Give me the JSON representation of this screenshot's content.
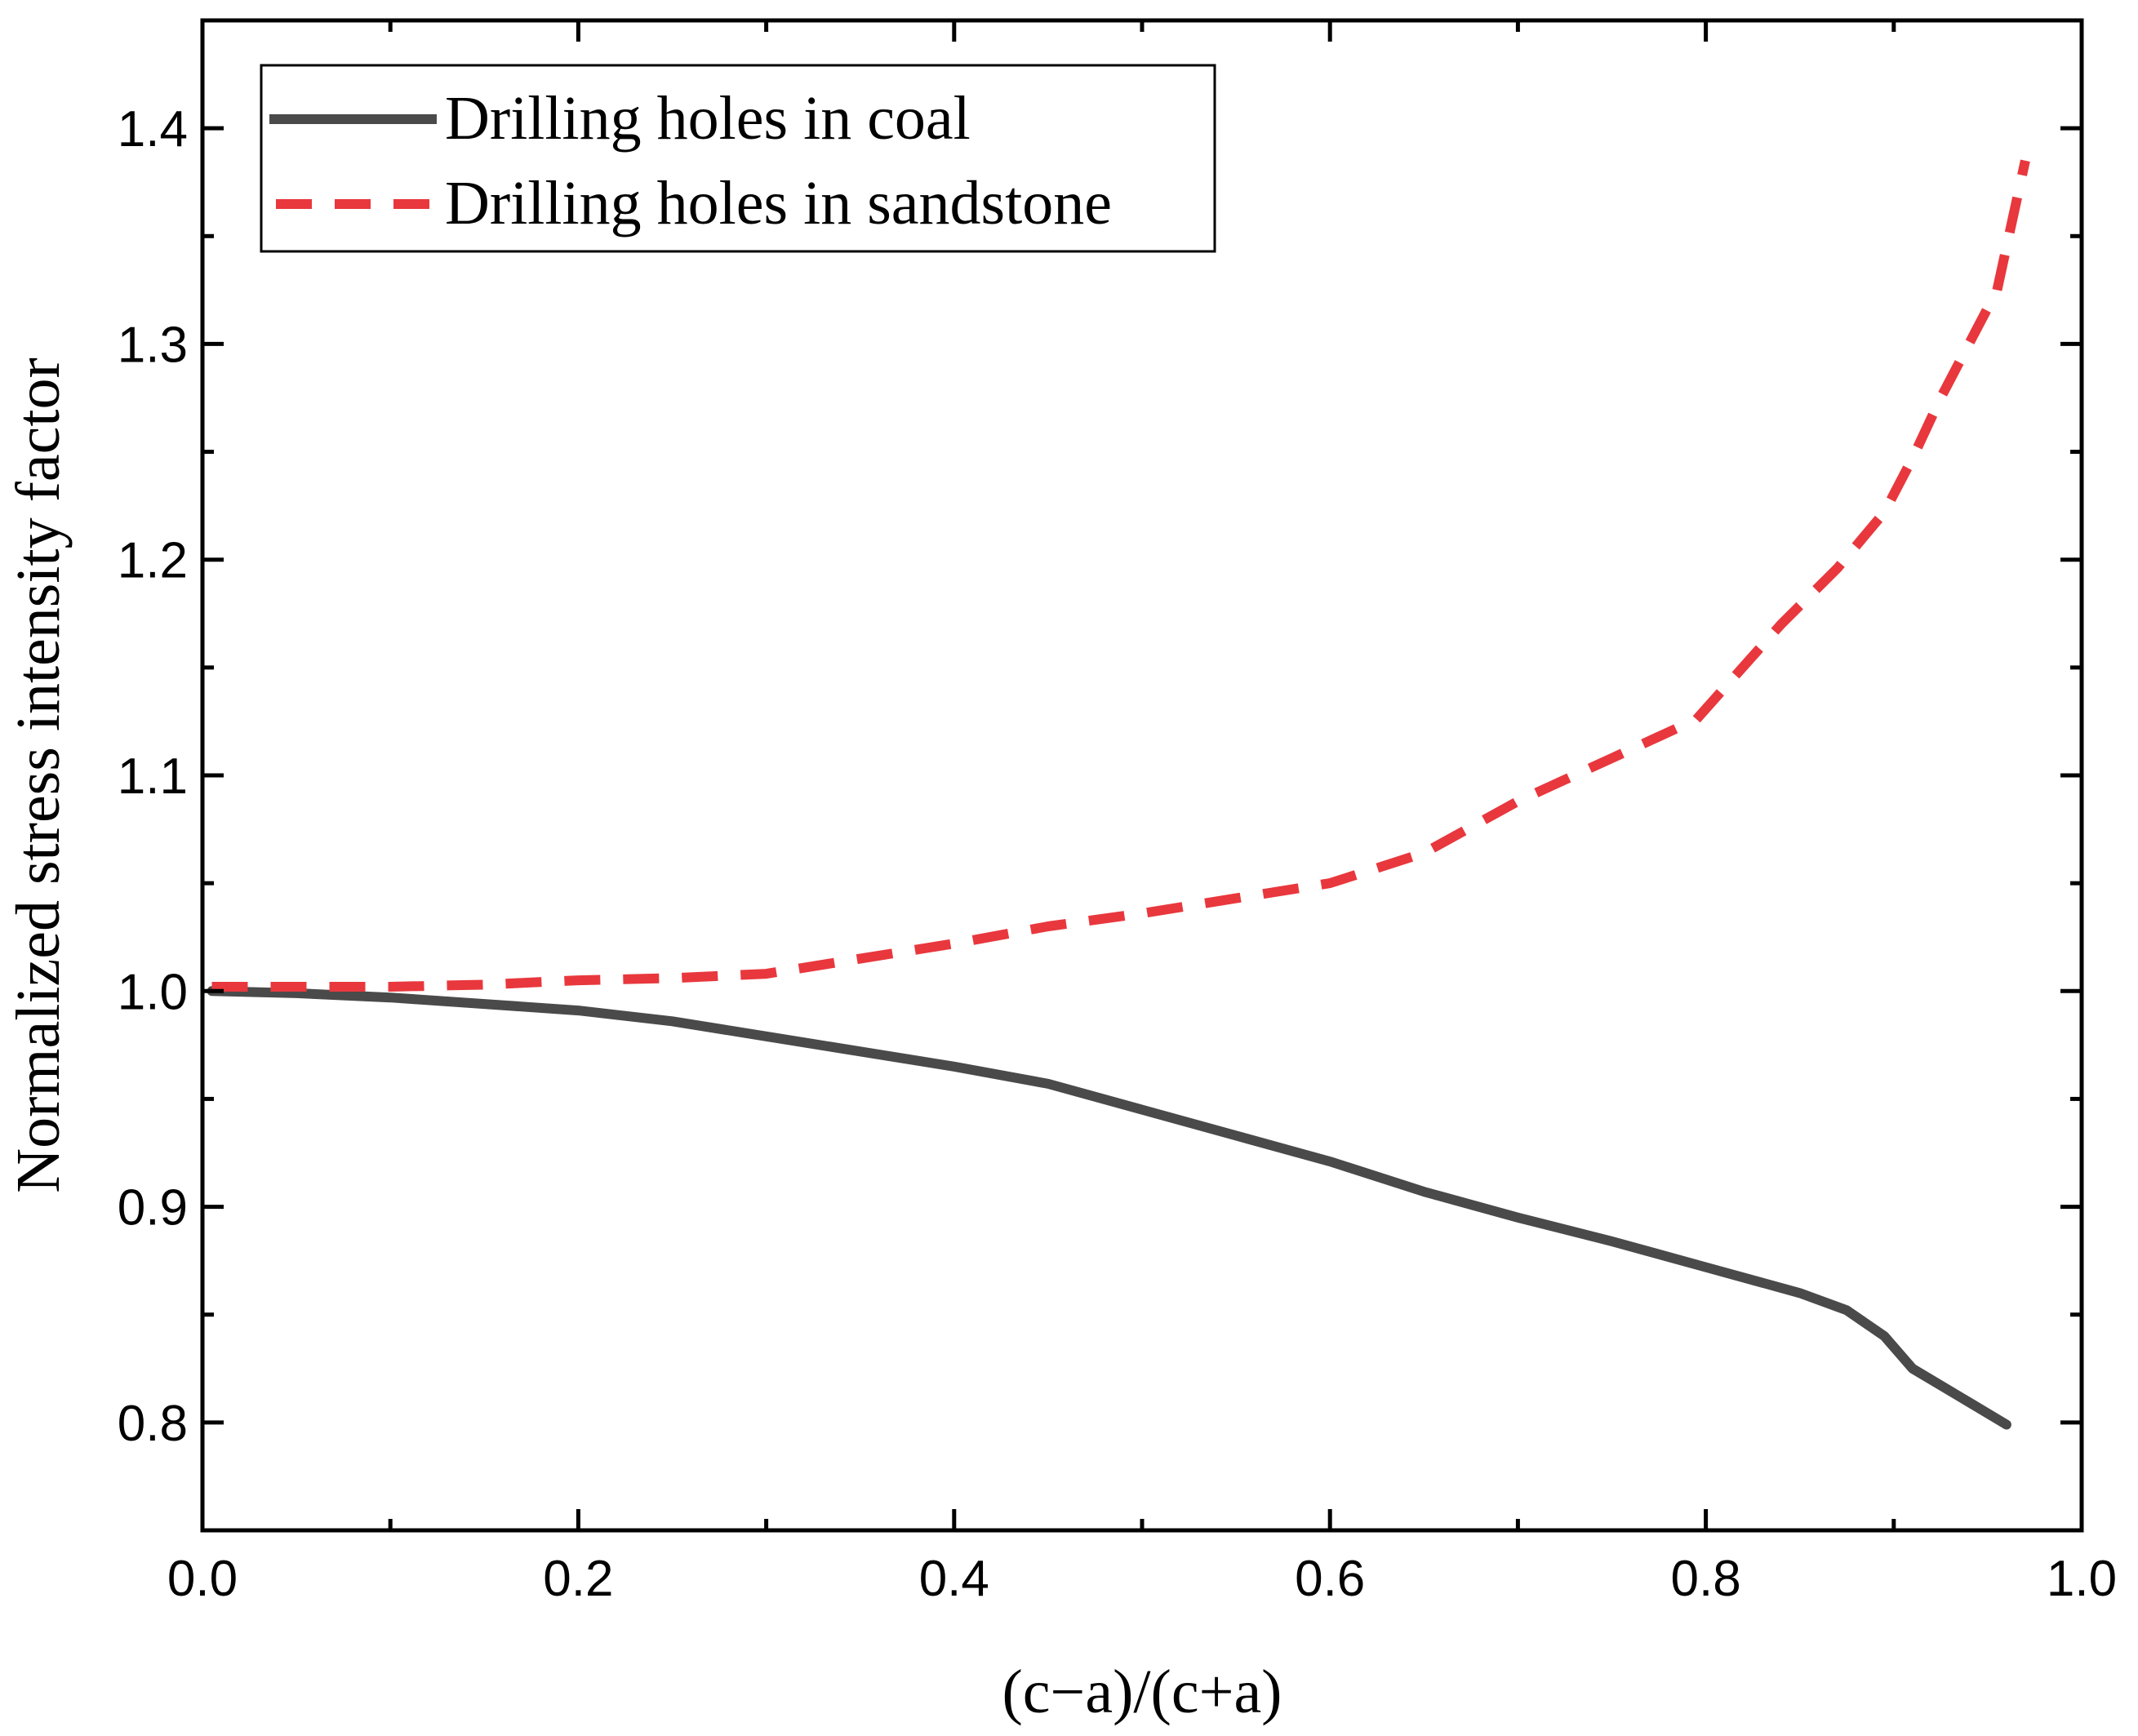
{
  "chart_data": {
    "type": "line",
    "title": "",
    "xlabel": "(c−a)/(c+a)",
    "ylabel": "Normalized stress intensity factor",
    "xlim": [
      0.0,
      1.0
    ],
    "ylim": [
      0.75,
      1.45
    ],
    "xticks": [
      0.0,
      0.2,
      0.4,
      0.6,
      0.8,
      1.0
    ],
    "xtick_labels": [
      "0.0",
      "0.2",
      "0.4",
      "0.6",
      "0.8",
      "1.0"
    ],
    "yticks": [
      0.8,
      0.9,
      1.0,
      1.1,
      1.2,
      1.3,
      1.4
    ],
    "ytick_labels": [
      "0.8",
      "0.9",
      "1.0",
      "1.1",
      "1.2",
      "1.3",
      "1.4"
    ],
    "grid": false,
    "legend_position": "top-left",
    "series": [
      {
        "name": "Drilling holes in coal",
        "color": "#4a4a4a",
        "style": "solid",
        "x": [
          0.005,
          0.05,
          0.1,
          0.15,
          0.2,
          0.25,
          0.3,
          0.35,
          0.4,
          0.45,
          0.5,
          0.55,
          0.6,
          0.65,
          0.7,
          0.75,
          0.8,
          0.85,
          0.875,
          0.895,
          0.91,
          0.935,
          0.96
        ],
        "y": [
          1.0,
          0.999,
          0.997,
          0.994,
          0.991,
          0.986,
          0.979,
          0.972,
          0.965,
          0.957,
          0.945,
          0.933,
          0.921,
          0.907,
          0.895,
          0.884,
          0.872,
          0.86,
          0.852,
          0.84,
          0.825,
          0.812,
          0.799
        ]
      },
      {
        "name": "Drilling holes in sandstone",
        "color": "#e8383d",
        "style": "dashed",
        "x": [
          0.005,
          0.1,
          0.15,
          0.2,
          0.25,
          0.3,
          0.35,
          0.4,
          0.45,
          0.5,
          0.55,
          0.6,
          0.65,
          0.7,
          0.75,
          0.795,
          0.84,
          0.87,
          0.895,
          0.91,
          0.925,
          0.955,
          0.97
        ],
        "y": [
          1.002,
          1.002,
          1.003,
          1.005,
          1.006,
          1.008,
          1.015,
          1.022,
          1.03,
          1.036,
          1.043,
          1.05,
          1.064,
          1.088,
          1.108,
          1.126,
          1.17,
          1.196,
          1.222,
          1.247,
          1.275,
          1.325,
          1.385
        ]
      }
    ]
  }
}
